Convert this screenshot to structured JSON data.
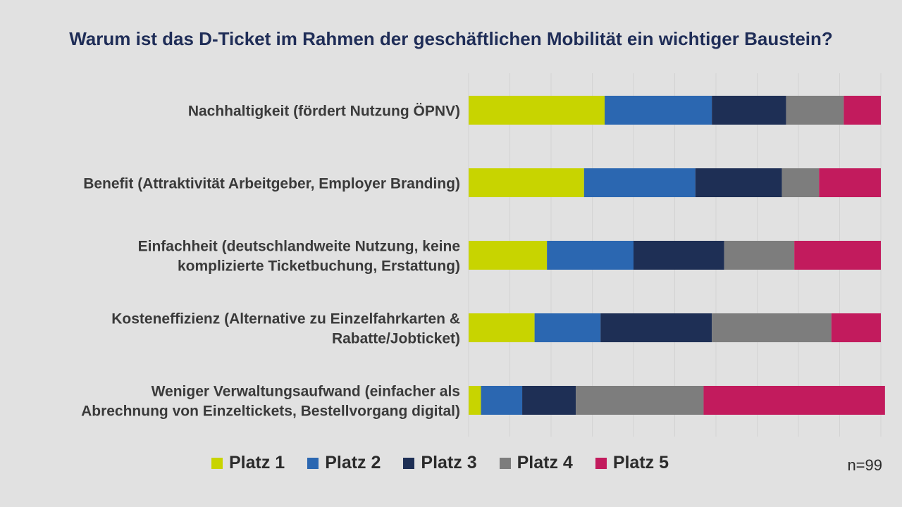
{
  "title": "Warum ist das D-Ticket im Rahmen der geschäftlichen Mobilität ein wichtiger Baustein?",
  "note": "n=99",
  "colors": {
    "Platz 1": "#c8d400",
    "Platz 2": "#2b67b1",
    "Platz 3": "#1e2f55",
    "Platz 4": "#7d7d7d",
    "Platz 5": "#c21b5d"
  },
  "chart_data": {
    "type": "bar",
    "orientation": "horizontal",
    "stacked": true,
    "unit": "percent",
    "title": "Warum ist das D-Ticket im Rahmen der geschäftlichen Mobilität ein wichtiger Baustein?",
    "categories": [
      [
        "Nachhaltigkeit (fördert Nutzung ÖPNV)"
      ],
      [
        "Benefit (Attraktivität Arbeitgeber, Employer Branding)"
      ],
      [
        "Einfachheit (deutschlandweite Nutzung, keine",
        "komplizierte Ticketbuchung, Erstattung)"
      ],
      [
        "Kosteneffizienz (Alternative zu Einzelfahrkarten &",
        "Rabatte/Jobticket)"
      ],
      [
        "Weniger Verwaltungsaufwand (einfacher als",
        "Abrechnung von Einzeltickets, Bestellvorgang digital)"
      ]
    ],
    "series": [
      {
        "name": "Platz 1",
        "values": [
          33,
          28,
          19,
          16,
          3
        ]
      },
      {
        "name": "Platz 2",
        "values": [
          26,
          27,
          21,
          16,
          10
        ]
      },
      {
        "name": "Platz 3",
        "values": [
          18,
          21,
          22,
          27,
          13
        ]
      },
      {
        "name": "Platz 4",
        "values": [
          14,
          9,
          17,
          29,
          31
        ]
      },
      {
        "name": "Platz 5",
        "values": [
          9,
          15,
          21,
          12,
          44
        ]
      }
    ],
    "xlim": [
      0,
      100
    ],
    "grid": true,
    "legend": "bottom"
  }
}
